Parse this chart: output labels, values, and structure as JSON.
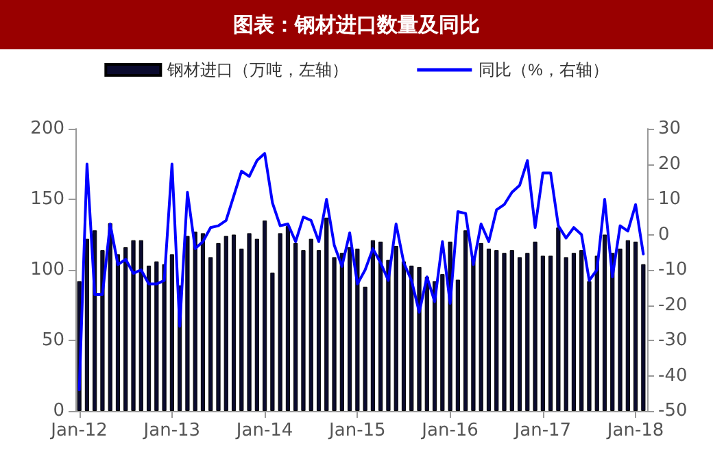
{
  "chart_data": {
    "type": "bar",
    "title": "图表：钢材进口数量及同比",
    "categories": [
      "Jan-12",
      null,
      null,
      null,
      null,
      null,
      null,
      null,
      null,
      null,
      null,
      null,
      "Jan-13",
      null,
      null,
      null,
      null,
      null,
      null,
      null,
      null,
      null,
      null,
      null,
      "Jan-14",
      null,
      null,
      null,
      null,
      null,
      null,
      null,
      null,
      null,
      null,
      null,
      "Jan-15",
      null,
      null,
      null,
      null,
      null,
      null,
      null,
      null,
      null,
      null,
      null,
      "Jan-16",
      null,
      null,
      null,
      null,
      null,
      null,
      null,
      null,
      null,
      null,
      null,
      "Jan-17",
      null,
      null,
      null,
      null,
      null,
      null,
      null,
      null,
      null,
      null,
      null,
      "Jan-18",
      null
    ],
    "series": [
      {
        "name": "钢材进口（万吨，左轴）",
        "color": "#0a0a2e",
        "values": [
          92,
          122,
          128,
          114,
          133,
          111,
          116,
          121,
          121,
          103,
          106,
          104,
          111,
          89,
          124,
          127,
          126,
          109,
          119,
          124,
          125,
          115,
          126,
          122,
          135,
          98,
          126,
          131,
          119,
          114,
          122,
          114,
          137,
          109,
          112,
          116,
          115,
          88,
          121,
          120,
          107,
          117,
          106,
          103,
          102,
          95,
          92,
          97,
          120,
          93,
          128,
          108,
          119,
          115,
          114,
          112,
          114,
          109,
          112,
          120,
          110,
          110,
          130,
          109,
          112,
          114,
          92,
          110,
          125,
          112,
          115,
          121,
          120,
          104
        ]
      },
      {
        "name": "同比（%，右轴）",
        "type": "line",
        "axis": "y2",
        "color": "#0000ff",
        "values": [
          -44,
          20,
          -17,
          -17,
          3,
          -8.5,
          -7,
          -11,
          -10,
          -14,
          -14,
          -13,
          20,
          -26,
          12,
          -4,
          -2,
          2,
          2.5,
          4,
          11,
          18,
          16.5,
          21,
          23,
          9,
          2.5,
          3,
          -2,
          5,
          4,
          -2,
          10,
          -3,
          -9,
          0.5,
          -14,
          -10,
          -4,
          -8,
          -13,
          3,
          -8,
          -13,
          -22,
          -12,
          -19,
          -2,
          -19.5,
          6.5,
          6,
          -8.5,
          3,
          -2,
          7,
          8.5,
          12,
          14,
          21,
          2,
          17.5,
          17.5,
          2.5,
          -1,
          2,
          0,
          -13,
          -10,
          10,
          -12,
          2.5,
          1,
          8.5,
          -5.5
        ]
      }
    ],
    "ylim": [
      0,
      200
    ],
    "yticks": [
      0,
      50,
      100,
      150,
      200
    ],
    "y2lim": [
      -50,
      30
    ],
    "y2ticks": [
      -50,
      -40,
      -30,
      -20,
      -10,
      0,
      10,
      20,
      30
    ],
    "grid": false,
    "legend": "top",
    "marker": "none",
    "line_style": "solid"
  }
}
